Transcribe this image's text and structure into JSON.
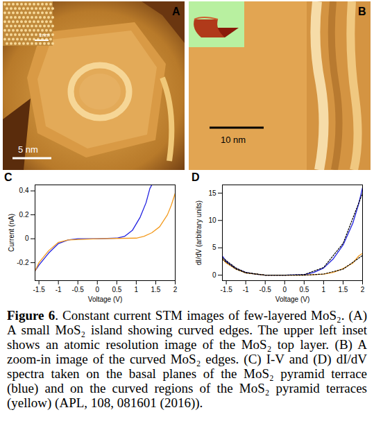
{
  "images": [
    {
      "letter": "A",
      "scale_bar": "5 nm",
      "inset_scale_bar": "1nm"
    },
    {
      "letter": "B",
      "scale_bar": "10 nm"
    }
  ],
  "chart_data": [
    {
      "type": "line",
      "panel_label": "C",
      "x_label": "Voltage (V)",
      "y_label": "Current (nA)",
      "xlim": [
        -1.6,
        2
      ],
      "xticks": [
        -1.5,
        -1,
        -0.5,
        0,
        0.5,
        1,
        1.5,
        2
      ],
      "ylim": [
        -0.35,
        0.45
      ],
      "yticks": [
        -0.2,
        0,
        0.2,
        0.4
      ],
      "series": [
        {
          "color": "#2020e0",
          "line_style": "solid",
          "x": [
            -1.6,
            -1.5,
            -1.25,
            -1,
            -0.75,
            -0.5,
            0,
            0.5,
            0.7,
            0.9,
            1.1,
            1.25,
            1.35,
            1.4
          ],
          "values": [
            -0.27,
            -0.22,
            -0.12,
            -0.04,
            -0.01,
            0,
            0,
            0.005,
            0.02,
            0.07,
            0.18,
            0.3,
            0.42,
            0.45
          ]
        },
        {
          "color": "#f39a1e",
          "line_style": "solid",
          "x": [
            -1.6,
            -1.5,
            -1.25,
            -1,
            -0.75,
            0,
            1,
            1.2,
            1.4,
            1.6,
            1.8,
            1.9,
            2
          ],
          "values": [
            -0.27,
            -0.2,
            -0.1,
            -0.03,
            -0.01,
            0,
            0.005,
            0.02,
            0.05,
            0.1,
            0.2,
            0.28,
            0.38
          ]
        }
      ]
    },
    {
      "type": "line",
      "panel_label": "D",
      "x_label": "Voltage (V)",
      "y_label": "dI/dV (arbitrary units)",
      "xlim": [
        -1.6,
        2
      ],
      "xticks": [
        -1.5,
        -1,
        -0.5,
        0,
        0.5,
        1,
        1.5,
        2
      ],
      "ylim": [
        -1,
        16.5
      ],
      "yticks": [
        0,
        5,
        10,
        15
      ],
      "series": [
        {
          "color": "#2020e0",
          "line_style": "solid",
          "x": [
            -1.6,
            -1.5,
            -1.25,
            -1,
            -0.75,
            -0.5,
            0,
            0.5,
            0.75,
            1,
            1.25,
            1.5,
            1.75,
            1.9,
            2
          ],
          "values": [
            3.5,
            2.5,
            1.2,
            0.5,
            0.2,
            0,
            0,
            0.1,
            0.5,
            1.3,
            3,
            5.5,
            9.5,
            13,
            16
          ]
        },
        {
          "color": "#f39a1e",
          "line_style": "solid",
          "x": [
            -1.6,
            -1.5,
            -1.25,
            -1,
            -0.5,
            0,
            0.5,
            1,
            1.25,
            1.5,
            1.75,
            1.9,
            2
          ],
          "values": [
            3,
            2.2,
            1.1,
            0.4,
            0,
            0,
            0,
            0.2,
            0.5,
            1.2,
            2.2,
            3.5,
            4
          ]
        },
        {
          "color": "#000000",
          "line_style": "dotted",
          "x": [
            -1.6,
            -1.25,
            -1,
            -0.5,
            0,
            0.5,
            1,
            1.5,
            2
          ],
          "values": [
            3.2,
            1.3,
            0.5,
            0,
            0,
            0.1,
            1.4,
            5.8,
            15
          ]
        },
        {
          "color": "#000000",
          "line_style": "dotted",
          "x": [
            -1.6,
            -1.25,
            -1,
            -0.5,
            0,
            0.5,
            1,
            1.5,
            2
          ],
          "values": [
            2.9,
            1.1,
            0.4,
            0,
            0,
            0,
            0.2,
            1.1,
            3.6
          ]
        }
      ]
    }
  ],
  "caption": {
    "label": "Figure 6",
    "text": ". Constant current STM images of few-layered MoS₂. (A) A small MoS₂ island showing curved edges. The upper left inset shows an atomic resolution image of the MoS₂ top layer. (B) A zoom-in image of the curved MoS₂ edges. (C) I-V and (D) dI/dV spectra taken on the basal planes of the MoS₂ pyramid terrace (blue) and on the curved regions of the MoS₂ pyramid terraces (yellow) (APL, 108, 081601 (2016))."
  }
}
